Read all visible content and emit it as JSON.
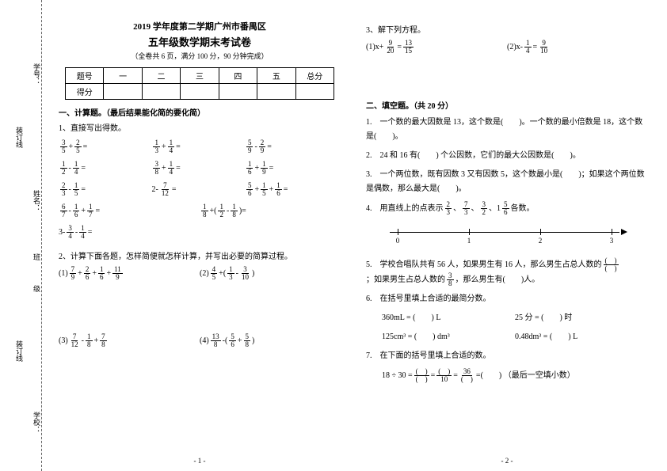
{
  "binding": {
    "labels": [
      "学号：",
      "装订线",
      "姓名：",
      "班",
      "级",
      "装订线",
      "学校："
    ],
    "positions": [
      80,
      160,
      240,
      320,
      360,
      430,
      520
    ]
  },
  "header": {
    "line1": "2019 学年度第二学期广州市番禺区",
    "line2": "五年级数学期末考试卷",
    "line3": "（全卷共 6 页，满分 100 分，90 分钟完成）"
  },
  "score_table": {
    "row1": [
      "题号",
      "一",
      "二",
      "三",
      "四",
      "五",
      "总分"
    ],
    "row2": [
      "得分",
      "",
      "",
      "",
      "",
      "",
      ""
    ]
  },
  "section1": {
    "title": "一、计算题。（最后结果能化简的要化简）",
    "q1": {
      "label": "1、直接写出得数。",
      "exprs": [
        [
          {
            "n": "3",
            "d": "5"
          },
          "+",
          {
            "n": "2",
            "d": "5"
          },
          "="
        ],
        [
          {
            "n": "1",
            "d": "3"
          },
          "+",
          {
            "n": "1",
            "d": "4"
          },
          "="
        ],
        [
          {
            "n": "5",
            "d": "9"
          },
          "-",
          {
            "n": "2",
            "d": "9"
          },
          "="
        ],
        [
          {
            "n": "1",
            "d": "2"
          },
          "-",
          {
            "n": "1",
            "d": "4"
          },
          "="
        ],
        [
          {
            "n": "3",
            "d": "8"
          },
          "+",
          {
            "n": "1",
            "d": "4"
          },
          "="
        ],
        [
          {
            "n": "1",
            "d": "6"
          },
          "+",
          {
            "n": "1",
            "d": "9"
          },
          "="
        ],
        [
          {
            "n": "2",
            "d": "3"
          },
          "-",
          {
            "n": "1",
            "d": "5"
          },
          "="
        ],
        [
          "2",
          "-",
          {
            "n": "7",
            "d": "12"
          },
          "="
        ],
        [
          {
            "n": "5",
            "d": "6"
          },
          "+",
          {
            "n": "1",
            "d": "5"
          },
          "+",
          {
            "n": "1",
            "d": "6"
          },
          "="
        ],
        [
          {
            "n": "6",
            "d": "7"
          },
          "-",
          {
            "n": "1",
            "d": "6"
          },
          "+",
          {
            "n": "1",
            "d": "7"
          },
          "="
        ],
        [
          {
            "n": "1",
            "d": "8"
          },
          "+",
          "(",
          {
            "n": "1",
            "d": "2"
          },
          "-",
          {
            "n": "1",
            "d": "8"
          },
          ")",
          "="
        ],
        [
          "3",
          "-",
          {
            "n": "3",
            "d": "4"
          },
          "-",
          {
            "n": "1",
            "d": "4"
          },
          "="
        ]
      ]
    },
    "q2": {
      "label": "2、计算下面各题，怎样简便就怎样计算，并写出必要的简算过程。",
      "items": [
        {
          "num": "(1)",
          "expr": [
            {
              "n": "7",
              "d": "9"
            },
            "+",
            {
              "n": "2",
              "d": "6"
            },
            "+",
            {
              "n": "1",
              "d": "6"
            },
            "+",
            {
              "n": "11",
              "d": "9"
            }
          ]
        },
        {
          "num": "(2)",
          "expr": [
            {
              "n": "4",
              "d": "5"
            },
            "+",
            "(",
            {
              "n": "1",
              "d": "3"
            },
            "-",
            {
              "n": "3",
              "d": "10"
            },
            ")"
          ]
        },
        {
          "num": "(3)",
          "expr": [
            {
              "n": "7",
              "d": "12"
            },
            "-",
            {
              "n": "1",
              "d": "8"
            },
            "+",
            {
              "n": "7",
              "d": "8"
            }
          ]
        },
        {
          "num": "(4)",
          "expr": [
            {
              "n": "13",
              "d": "8"
            },
            "-",
            "(",
            {
              "n": "5",
              "d": "6"
            },
            "+",
            {
              "n": "5",
              "d": "8"
            },
            ")"
          ]
        }
      ]
    },
    "q3": {
      "label": "3、解下列方程。",
      "items": [
        {
          "num": "(1)",
          "expr": [
            "x",
            "+",
            {
              "n": "9",
              "d": "20"
            },
            "=",
            {
              "n": "13",
              "d": "15"
            }
          ]
        },
        {
          "num": "(2)",
          "expr": [
            "x",
            "-",
            {
              "n": "1",
              "d": "4"
            },
            "=",
            {
              "n": "9",
              "d": "10"
            }
          ]
        }
      ]
    }
  },
  "section2": {
    "title": "二、填空题。（共 20 分）",
    "q1": "一个数的最大因数是 13，这个数是(　　)。一个数的最小倍数是 18，这个数是(　　)。",
    "q2": "24 和 16 有(　　) 个公因数，它们的最大公因数是(　　)。",
    "q3": "一个两位数，既有因数 3 又有因数 5，这个数最小是(　　)；如果这个两位数是偶数，那么最大是(　　)。",
    "q4": {
      "label": "用直线上的点表示",
      "fracs": [
        {
          "n": "2",
          "d": "3"
        },
        {
          "n": "7",
          "d": "3"
        },
        {
          "n": "3",
          "d": "2"
        }
      ],
      "mixed": "1",
      "mixed_frac": {
        "n": "5",
        "d": "6"
      },
      "suffix": "各数。",
      "ticks": [
        0,
        1,
        2,
        3
      ]
    },
    "q5": {
      "text1": "学校合唱队共有 56 人，如果男生有 16 人，那么男生占总人数的",
      "text2": "；如果男生占总人数的",
      "frac": {
        "n": "3",
        "d": "8"
      },
      "text3": "，那么男生有(　　)人。"
    },
    "q6": {
      "label": "在括号里填上合适的最简分数。",
      "lines": [
        [
          "360mL = (　　) L",
          "25 分 = (　　) 时"
        ],
        [
          "125cm³ = (　　) dm³",
          "0.48dm³ = (　　) L"
        ]
      ]
    },
    "q7": {
      "label": "在下面的括号里填上合适的数。",
      "expr": "18 ÷ 30 =",
      "parts": [
        "(　)",
        "=",
        "(　)",
        "=",
        "36",
        "=",
        "(　　)"
      ],
      "denoms": [
        "(　)",
        "10",
        "(　)"
      ],
      "note": "（最后一空填小数）"
    }
  },
  "page_nums": [
    "- 1 -",
    "- 2 -"
  ],
  "colors": {
    "bg": "#ffffff",
    "text": "#000000",
    "line": "#000000"
  }
}
